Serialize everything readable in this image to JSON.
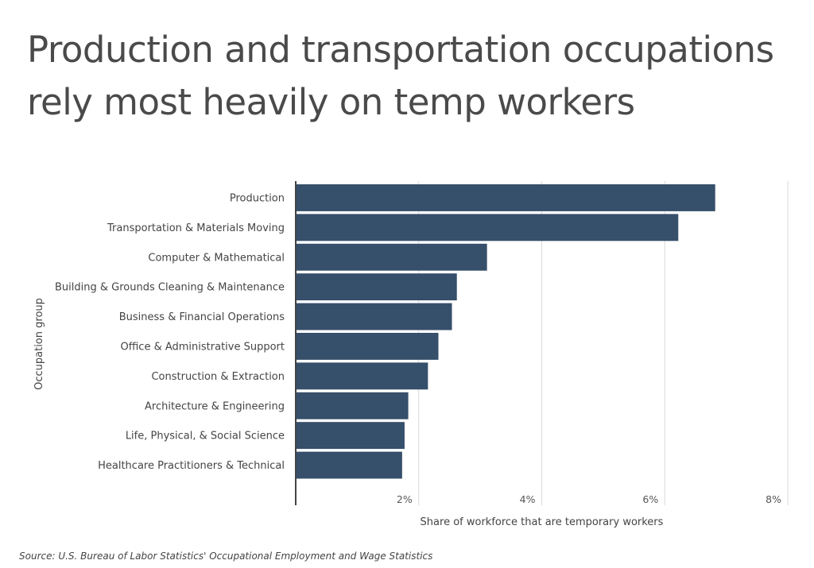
{
  "title": "Production and transportation occupations rely most heavily on temp workers",
  "source": "Source: U.S. Bureau of Labor Statistics' Occupational Employment and Wage Statistics",
  "chart_data": {
    "type": "bar",
    "orientation": "horizontal",
    "title": "Production and transportation occupations rely most heavily on temp workers",
    "xlabel": "Share of workforce that are temporary workers",
    "ylabel": "Occupation group",
    "xlim": [
      0,
      8
    ],
    "xticks": [
      2,
      4,
      6,
      8
    ],
    "xtick_labels": [
      "2%",
      "4%",
      "6%",
      "8%"
    ],
    "grid": "vertical",
    "bar_color": "#364f6b",
    "categories": [
      "Production",
      "Transportation & Materials Moving",
      "Computer & Mathematical",
      "Building & Grounds Cleaning & Maintenance",
      "Business & Financial Operations",
      "Office & Administrative Support",
      "Construction & Extraction",
      "Architecture & Engineering",
      "Life, Physical, & Social Science",
      "Healthcare Practitioners & Technical"
    ],
    "values": [
      6.82,
      6.22,
      3.11,
      2.62,
      2.54,
      2.32,
      2.15,
      1.83,
      1.77,
      1.73
    ]
  }
}
